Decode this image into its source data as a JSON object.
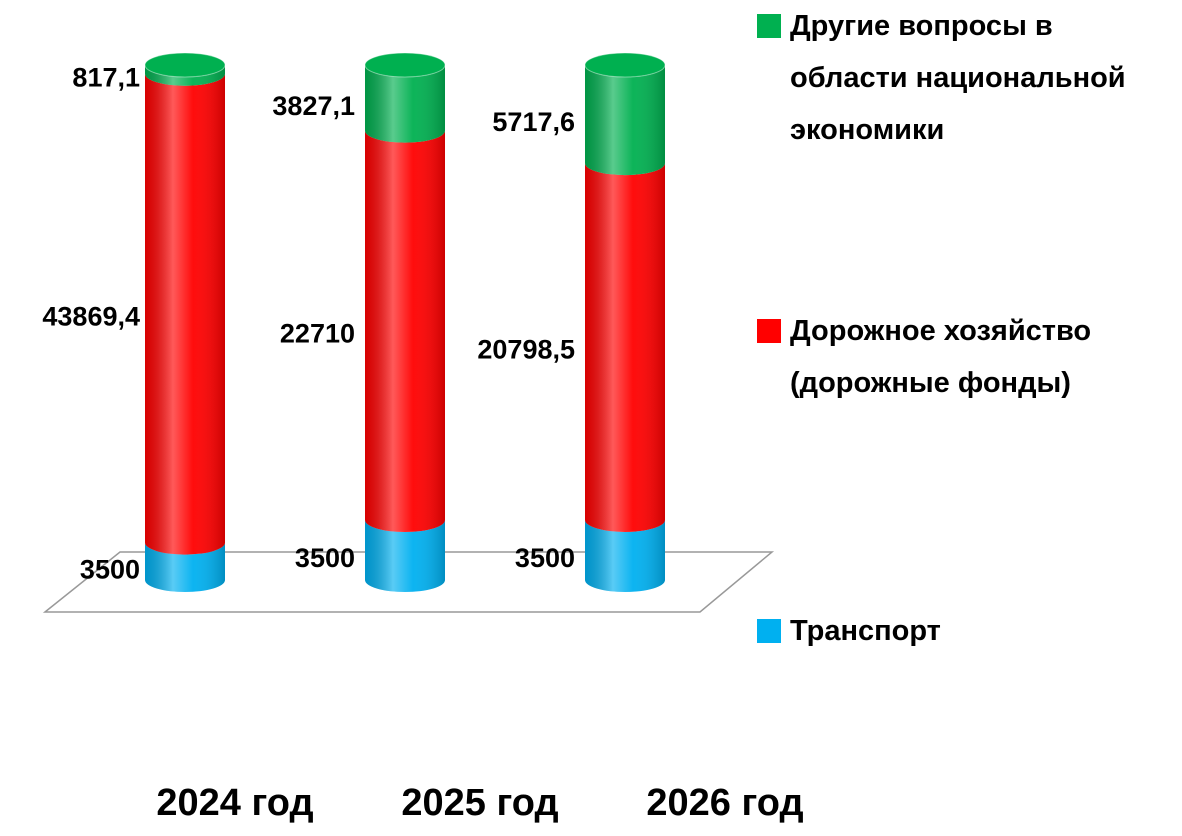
{
  "chart_data": {
    "type": "bar",
    "stacked": "percent",
    "categories": [
      "2024 год",
      "2025 год",
      "2026 год"
    ],
    "series": [
      {
        "name": "Транспорт",
        "color": "#00b0f0",
        "values": [
          3500,
          3500,
          3500
        ],
        "value_labels": [
          "3500",
          "3500",
          "3500"
        ]
      },
      {
        "name": "Дорожное хозяйство (дорожные фонды)",
        "color": "#ff0000",
        "values": [
          43869.4,
          22710,
          20798.5
        ],
        "value_labels": [
          "43869,4",
          "22710",
          "20798,5"
        ]
      },
      {
        "name": "Другие вопросы в области национальной экономики",
        "color": "#00b050",
        "values": [
          817.1,
          3827.1,
          5717.6
        ],
        "value_labels": [
          "817,1",
          "3827,1",
          "5717,6"
        ]
      }
    ],
    "legend": "right"
  }
}
